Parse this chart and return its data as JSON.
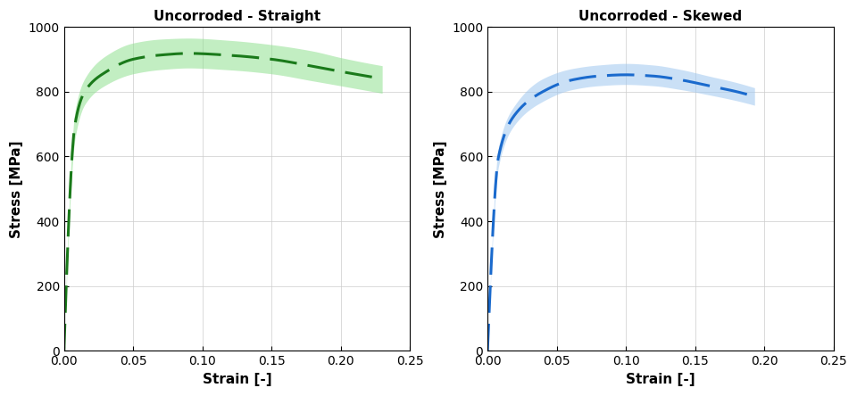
{
  "title_left": "Uncorroded - Straight",
  "title_right": "Uncorroded - Skewed",
  "xlabel": "Strain [-]",
  "ylabel": "Stress [MPa]",
  "xlim": [
    0,
    0.25
  ],
  "ylim": [
    0,
    1000
  ],
  "xticks": [
    0,
    0.05,
    0.1,
    0.15,
    0.2,
    0.25
  ],
  "yticks": [
    0,
    200,
    400,
    600,
    800,
    1000
  ],
  "green_color": "#1a7a1a",
  "green_band_color": "#90e090",
  "blue_color": "#1a6acd",
  "blue_band_color": "#a0c8f0",
  "background": "#ffffff",
  "left_mean_points": [
    [
      0.0,
      0
    ],
    [
      0.008,
      700
    ],
    [
      0.015,
      800
    ],
    [
      0.03,
      860
    ],
    [
      0.05,
      900
    ],
    [
      0.07,
      913
    ],
    [
      0.09,
      918
    ],
    [
      0.12,
      912
    ],
    [
      0.15,
      900
    ],
    [
      0.18,
      878
    ],
    [
      0.2,
      862
    ],
    [
      0.23,
      840
    ]
  ],
  "left_upper_points": [
    [
      0.0,
      0
    ],
    [
      0.008,
      740
    ],
    [
      0.015,
      840
    ],
    [
      0.03,
      910
    ],
    [
      0.05,
      950
    ],
    [
      0.07,
      962
    ],
    [
      0.09,
      965
    ],
    [
      0.12,
      958
    ],
    [
      0.15,
      945
    ],
    [
      0.18,
      925
    ],
    [
      0.2,
      905
    ],
    [
      0.23,
      880
    ]
  ],
  "left_lower_points": [
    [
      0.0,
      0
    ],
    [
      0.008,
      655
    ],
    [
      0.015,
      760
    ],
    [
      0.03,
      820
    ],
    [
      0.05,
      855
    ],
    [
      0.07,
      868
    ],
    [
      0.09,
      873
    ],
    [
      0.12,
      867
    ],
    [
      0.15,
      855
    ],
    [
      0.18,
      833
    ],
    [
      0.2,
      818
    ],
    [
      0.23,
      795
    ]
  ],
  "right_mean_points": [
    [
      0.0,
      0
    ],
    [
      0.008,
      600
    ],
    [
      0.02,
      730
    ],
    [
      0.04,
      800
    ],
    [
      0.06,
      835
    ],
    [
      0.08,
      848
    ],
    [
      0.1,
      852
    ],
    [
      0.12,
      848
    ],
    [
      0.14,
      836
    ],
    [
      0.16,
      818
    ],
    [
      0.18,
      800
    ],
    [
      0.193,
      785
    ]
  ],
  "right_upper_points": [
    [
      0.0,
      0
    ],
    [
      0.008,
      630
    ],
    [
      0.02,
      760
    ],
    [
      0.04,
      840
    ],
    [
      0.06,
      870
    ],
    [
      0.08,
      882
    ],
    [
      0.1,
      887
    ],
    [
      0.12,
      882
    ],
    [
      0.14,
      868
    ],
    [
      0.16,
      848
    ],
    [
      0.18,
      828
    ],
    [
      0.193,
      812
    ]
  ],
  "right_lower_points": [
    [
      0.0,
      0
    ],
    [
      0.008,
      570
    ],
    [
      0.02,
      700
    ],
    [
      0.04,
      770
    ],
    [
      0.06,
      805
    ],
    [
      0.08,
      818
    ],
    [
      0.1,
      822
    ],
    [
      0.12,
      818
    ],
    [
      0.14,
      806
    ],
    [
      0.16,
      790
    ],
    [
      0.18,
      772
    ],
    [
      0.193,
      758
    ]
  ]
}
